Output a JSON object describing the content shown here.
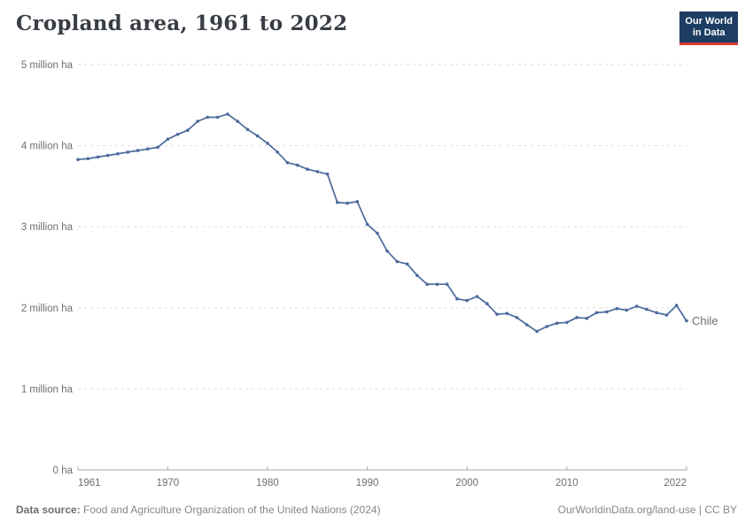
{
  "header": {
    "title": "Cropland area, 1961 to 2022",
    "logo": {
      "line1": "Our World",
      "line2": "in Data"
    }
  },
  "footer": {
    "source_label": "Data source:",
    "source_text": "Food and Agriculture Organization of the United Nations (2024)",
    "link_text": "OurWorldinData.org/land-use",
    "license_text": "| CC BY"
  },
  "colors": {
    "line": "#4C6A9C",
    "entity_label": "#4C6A9C",
    "logo_bg": "#1d3d63",
    "logo_accent": "#dc3a30",
    "grid": "#dedede",
    "axis": "#a5a5a5",
    "tick_text": "#6e6e6e",
    "title_text": "#383d44",
    "footer_text": "#878787"
  },
  "chart_data": {
    "type": "line",
    "title": "Cropland area, 1961 to 2022",
    "xlabel": "",
    "ylabel": "",
    "unit": "ha",
    "grid": true,
    "legend_position": "end-of-line-label",
    "xlim": [
      1961,
      2022
    ],
    "ylim_million_ha": [
      0,
      5
    ],
    "x_ticks": [
      1961,
      1970,
      1980,
      1990,
      2000,
      2010,
      2022
    ],
    "y_ticks": [
      {
        "value": 0,
        "label": "0 ha"
      },
      {
        "value": 1,
        "label": "1 million ha"
      },
      {
        "value": 2,
        "label": "2 million ha"
      },
      {
        "value": 3,
        "label": "3 million ha"
      },
      {
        "value": 4,
        "label": "4 million ha"
      },
      {
        "value": 5,
        "label": "5 million ha"
      }
    ],
    "series": [
      {
        "name": "Chile",
        "color": "#4C6A9C",
        "years": [
          1961,
          1962,
          1963,
          1964,
          1965,
          1966,
          1967,
          1968,
          1969,
          1970,
          1971,
          1972,
          1973,
          1974,
          1975,
          1976,
          1977,
          1978,
          1979,
          1980,
          1981,
          1982,
          1983,
          1984,
          1985,
          1986,
          1987,
          1988,
          1989,
          1990,
          1991,
          1992,
          1993,
          1994,
          1995,
          1996,
          1997,
          1998,
          1999,
          2000,
          2001,
          2002,
          2003,
          2004,
          2005,
          2006,
          2007,
          2008,
          2009,
          2010,
          2011,
          2012,
          2013,
          2014,
          2015,
          2016,
          2017,
          2018,
          2019,
          2020,
          2021,
          2022
        ],
        "values_million_ha": [
          3.83,
          3.84,
          3.86,
          3.88,
          3.9,
          3.92,
          3.94,
          3.96,
          3.98,
          4.08,
          4.14,
          4.19,
          4.3,
          4.35,
          4.35,
          4.39,
          4.3,
          4.2,
          4.12,
          4.03,
          3.92,
          3.79,
          3.76,
          3.71,
          3.68,
          3.65,
          3.3,
          3.29,
          3.31,
          3.03,
          2.92,
          2.7,
          2.57,
          2.54,
          2.4,
          2.29,
          2.29,
          2.29,
          2.11,
          2.09,
          2.14,
          2.05,
          1.92,
          1.93,
          1.88,
          1.79,
          1.71,
          1.77,
          1.81,
          1.82,
          1.88,
          1.87,
          1.94,
          1.95,
          1.99,
          1.97,
          2.02,
          1.98,
          1.94,
          1.91,
          2.03,
          1.84
        ]
      }
    ]
  }
}
